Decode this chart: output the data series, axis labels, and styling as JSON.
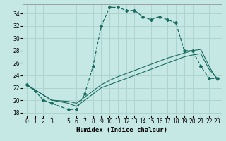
{
  "xlabel": "Humidex (Indice chaleur)",
  "bg_color": "#c5e8e5",
  "grid_color": "#afd4d0",
  "line_color": "#1a6b60",
  "xlim": [
    -0.5,
    23.5
  ],
  "ylim": [
    17.5,
    35.5
  ],
  "xticks": [
    0,
    1,
    2,
    3,
    5,
    6,
    7,
    8,
    9,
    10,
    11,
    12,
    13,
    14,
    15,
    16,
    17,
    18,
    19,
    20,
    21,
    22,
    23
  ],
  "yticks": [
    18,
    20,
    22,
    24,
    26,
    28,
    30,
    32,
    34
  ],
  "curve1_x": [
    0,
    1,
    2,
    3,
    5,
    6,
    7,
    8,
    9,
    10,
    11,
    12,
    13,
    14,
    15,
    16,
    17,
    18,
    19,
    20,
    21,
    22,
    23
  ],
  "curve1_y": [
    22.5,
    21.5,
    20.0,
    19.5,
    18.5,
    18.5,
    21.0,
    25.5,
    32.0,
    35.0,
    35.0,
    34.5,
    34.5,
    33.5,
    33.0,
    33.5,
    33.0,
    32.5,
    28.0,
    28.0,
    25.5,
    23.5,
    23.5
  ],
  "curve2_x": [
    0,
    3,
    5,
    6,
    7,
    8,
    9,
    10,
    11,
    12,
    13,
    14,
    15,
    16,
    17,
    18,
    19,
    20,
    21,
    22,
    23
  ],
  "curve2_y": [
    22.5,
    20.0,
    19.8,
    19.5,
    20.5,
    21.5,
    22.5,
    23.2,
    23.8,
    24.3,
    24.8,
    25.3,
    25.8,
    26.3,
    26.8,
    27.2,
    27.6,
    28.0,
    28.2,
    25.5,
    23.2
  ],
  "curve3_x": [
    0,
    3,
    5,
    6,
    7,
    8,
    9,
    10,
    11,
    12,
    13,
    14,
    15,
    16,
    17,
    18,
    19,
    20,
    21,
    22,
    23
  ],
  "curve3_y": [
    22.5,
    20.0,
    19.5,
    19.0,
    20.0,
    21.0,
    22.0,
    22.5,
    23.0,
    23.5,
    24.0,
    24.5,
    25.0,
    25.5,
    26.0,
    26.5,
    27.0,
    27.3,
    27.5,
    25.0,
    23.5
  ]
}
